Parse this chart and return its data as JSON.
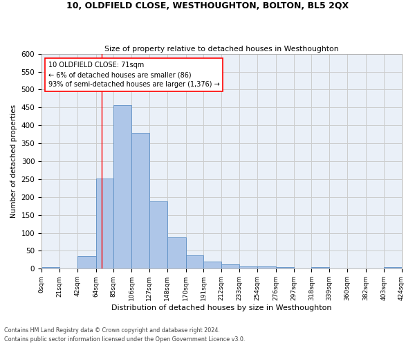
{
  "title1": "10, OLDFIELD CLOSE, WESTHOUGHTON, BOLTON, BL5 2QX",
  "title2": "Size of property relative to detached houses in Westhoughton",
  "xlabel": "Distribution of detached houses by size in Westhoughton",
  "ylabel": "Number of detached properties",
  "footnote1": "Contains HM Land Registry data © Crown copyright and database right 2024.",
  "footnote2": "Contains public sector information licensed under the Open Government Licence v3.0.",
  "bar_edges": [
    0,
    21,
    42,
    64,
    85,
    106,
    127,
    148,
    170,
    191,
    212,
    233,
    254,
    276,
    297,
    318,
    339,
    360,
    382,
    403,
    424
  ],
  "bar_heights": [
    5,
    0,
    35,
    252,
    457,
    380,
    188,
    88,
    38,
    20,
    13,
    7,
    7,
    5,
    0,
    5,
    0,
    0,
    0,
    5
  ],
  "bar_color": "#aec6e8",
  "bar_edge_color": "#5b8ec4",
  "grid_color": "#cccccc",
  "bg_color": "#eaf0f8",
  "property_line_x": 71,
  "property_line_color": "red",
  "annotation_text": "10 OLDFIELD CLOSE: 71sqm\n← 6% of detached houses are smaller (86)\n93% of semi-detached houses are larger (1,376) →",
  "annotation_box_color": "white",
  "annotation_box_edge": "red",
  "ylim": [
    0,
    600
  ],
  "yticks": [
    0,
    50,
    100,
    150,
    200,
    250,
    300,
    350,
    400,
    450,
    500,
    550,
    600
  ],
  "tick_labels": [
    "0sqm",
    "21sqm",
    "42sqm",
    "64sqm",
    "85sqm",
    "106sqm",
    "127sqm",
    "148sqm",
    "170sqm",
    "191sqm",
    "212sqm",
    "233sqm",
    "254sqm",
    "276sqm",
    "297sqm",
    "318sqm",
    "339sqm",
    "360sqm",
    "382sqm",
    "403sqm",
    "424sqm"
  ],
  "fig_width": 6.0,
  "fig_height": 5.0,
  "dpi": 100
}
